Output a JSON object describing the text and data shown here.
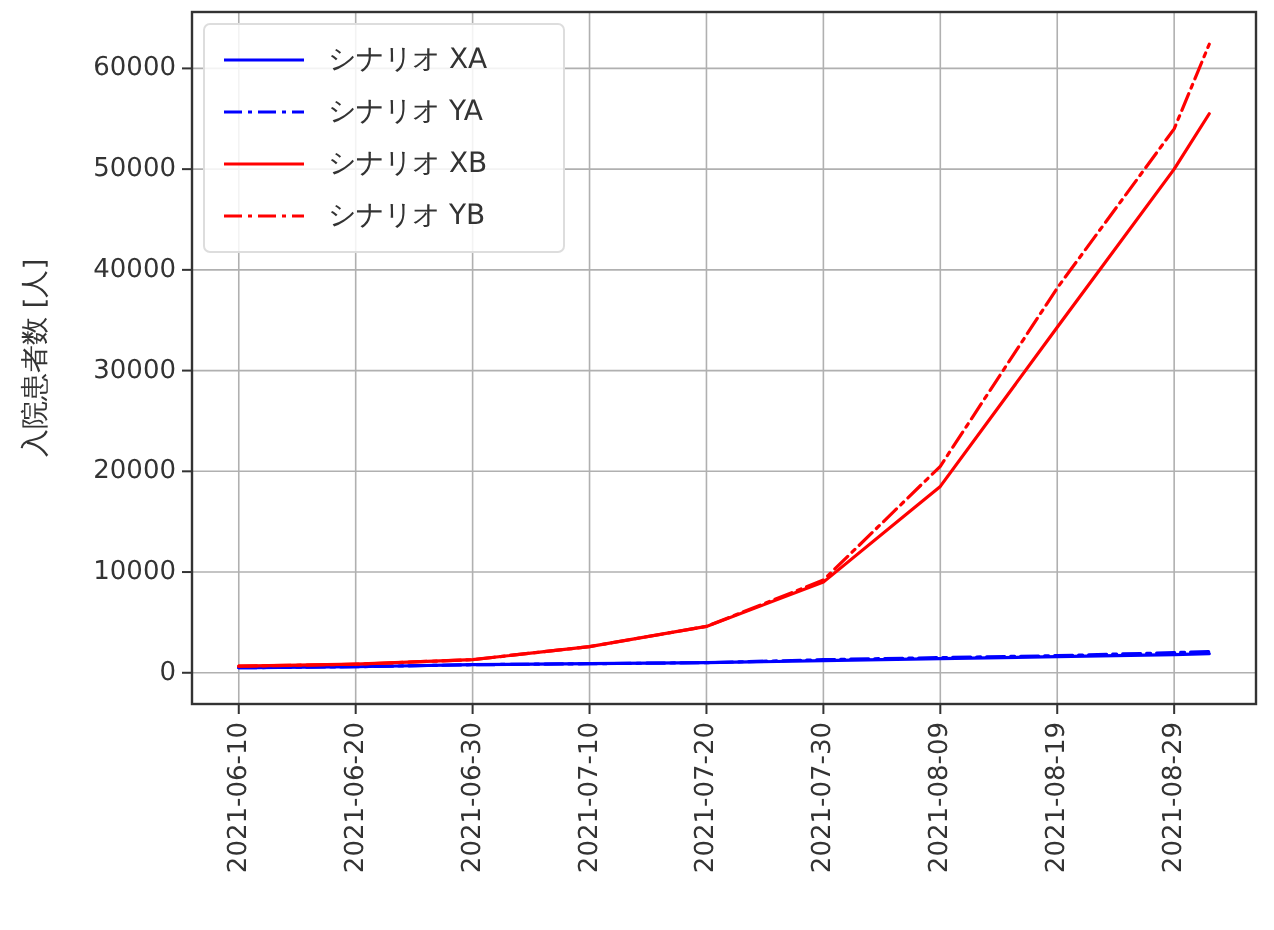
{
  "chart_data": {
    "type": "line",
    "ylabel": "入院患者数 [人]",
    "x": [
      "2021-06-10",
      "2021-06-20",
      "2021-06-30",
      "2021-07-10",
      "2021-07-20",
      "2021-07-30",
      "2021-08-09",
      "2021-08-19",
      "2021-08-29",
      "2021-09-01"
    ],
    "series": [
      {
        "name": "シナリオ XA",
        "color": "#0000ff",
        "line_style": "solid",
        "values": [
          500,
          600,
          800,
          900,
          1000,
          1200,
          1400,
          1600,
          1800,
          1900
        ]
      },
      {
        "name": "シナリオ YA",
        "color": "#0000ff",
        "line_style": "dashdot",
        "values": [
          500,
          600,
          800,
          900,
          1000,
          1300,
          1500,
          1700,
          2000,
          2100
        ]
      },
      {
        "name": "シナリオ XB",
        "color": "#ff0000",
        "line_style": "solid",
        "values": [
          650,
          850,
          1300,
          2600,
          4600,
          9000,
          18500,
          34300,
          50000,
          55500
        ]
      },
      {
        "name": "シナリオ YB",
        "color": "#ff0000",
        "line_style": "dashdot",
        "values": [
          650,
          850,
          1300,
          2600,
          4600,
          9200,
          20500,
          38200,
          54000,
          62400
        ]
      }
    ],
    "xlim": [
      "2021-06-06",
      "2021-09-05"
    ],
    "xticks": [
      "2021-06-10",
      "2021-06-20",
      "2021-06-30",
      "2021-07-10",
      "2021-07-20",
      "2021-07-30",
      "2021-08-09",
      "2021-08-19",
      "2021-08-29"
    ],
    "ylim": [
      -3100,
      65600
    ],
    "yticks": [
      0,
      10000,
      20000,
      30000,
      40000,
      50000,
      60000
    ],
    "grid": true,
    "legend": "top left"
  }
}
